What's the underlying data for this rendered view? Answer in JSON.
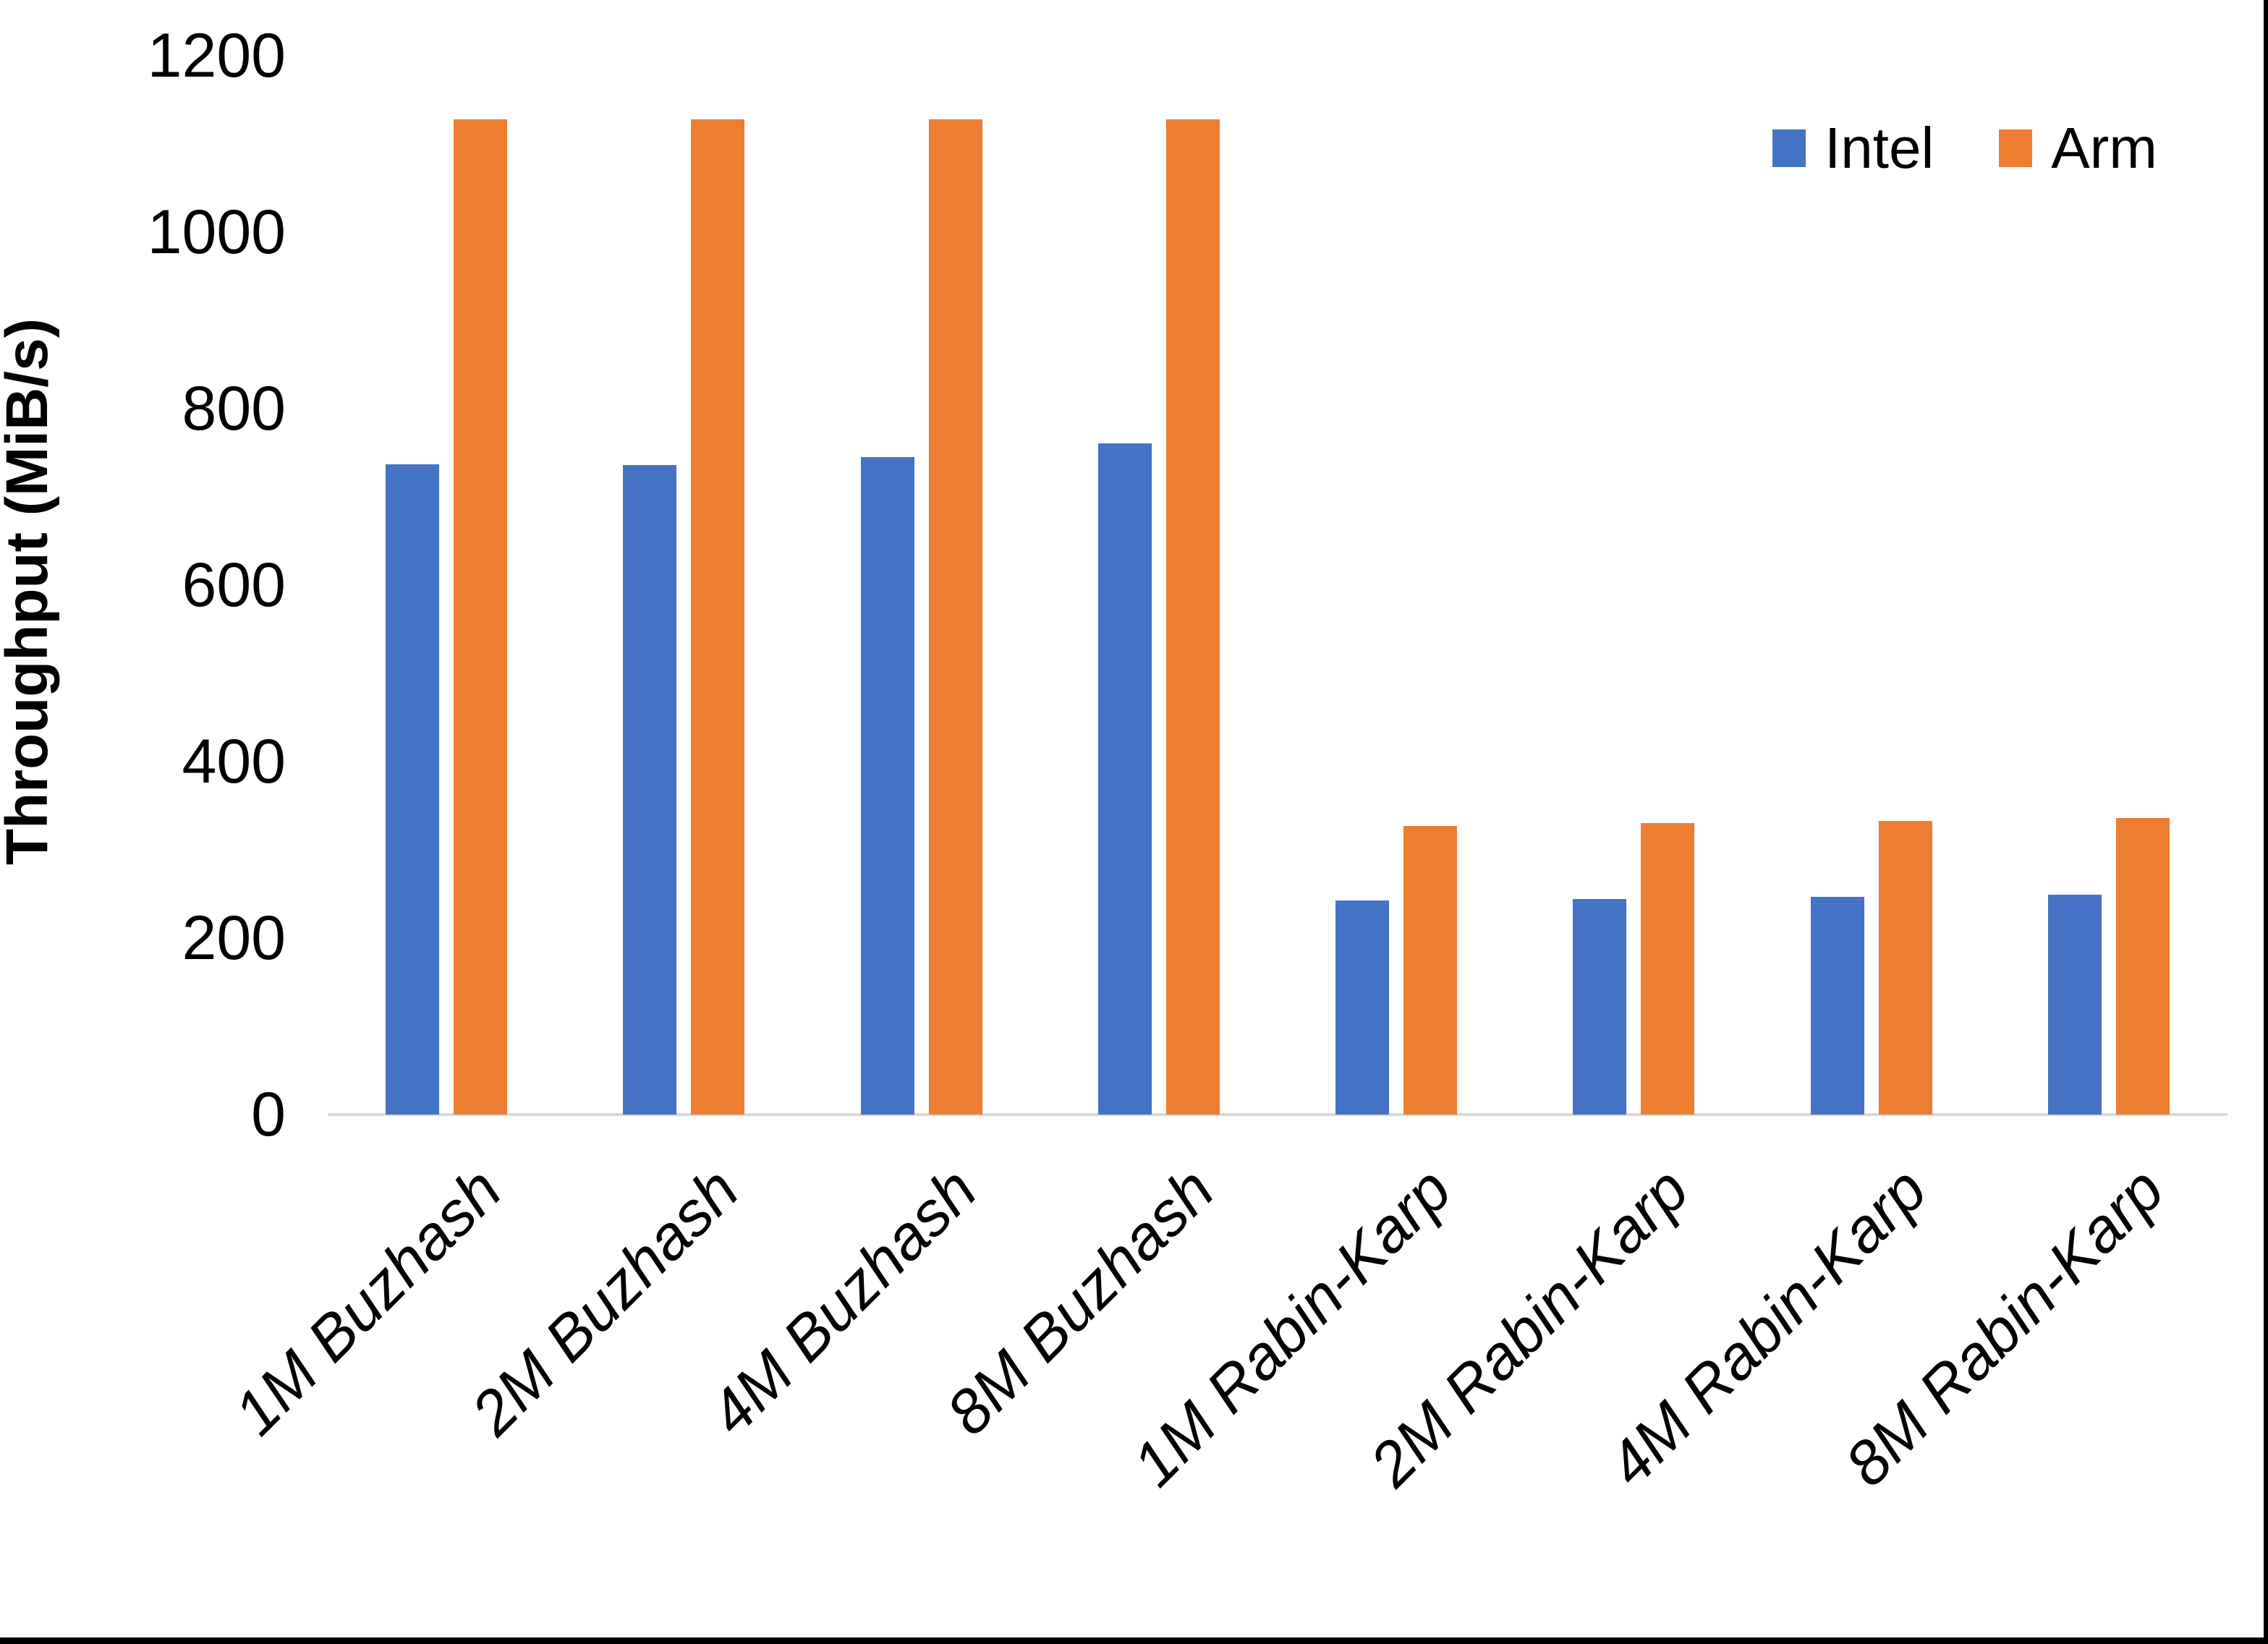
{
  "chart_data": {
    "type": "bar",
    "title": "",
    "ylabel": "Throughput (MiB/s)",
    "xlabel": "",
    "ylim": [
      0,
      1200
    ],
    "yticks": [
      0,
      200,
      400,
      600,
      800,
      1000,
      1200
    ],
    "grid": false,
    "legend_position": "top-right",
    "categories": [
      "1M Buzhash",
      "2M Buzhash",
      "4M Buzhash",
      "8M Buzhash",
      "1M Rabin-Karp",
      "2M Rabin-Karp",
      "4M Rabin-Karp",
      "8M Rabin-Karp"
    ],
    "series": [
      {
        "name": "Intel",
        "color": "#4472C4",
        "values": [
          737,
          736,
          745,
          761,
          243,
          244,
          247,
          249
        ]
      },
      {
        "name": "Arm",
        "color": "#ED7D31",
        "values": [
          1128,
          1128,
          1128,
          1128,
          327,
          330,
          333,
          336
        ]
      }
    ],
    "colors": {
      "axis_line": "#D9D9D9",
      "text": "#000000",
      "background": "#FFFFFF"
    }
  }
}
